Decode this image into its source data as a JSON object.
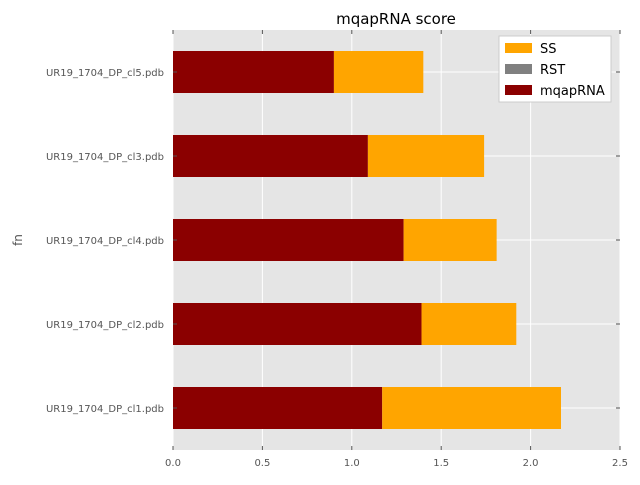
{
  "chart_data": {
    "type": "bar",
    "orientation": "horizontal",
    "stacked": true,
    "title": "mqapRNA score",
    "xlabel": "",
    "ylabel": "fn",
    "xlim": [
      0,
      2.5
    ],
    "xticks": [
      "0.0",
      "0.5",
      "1.0",
      "1.5",
      "2.0",
      "2.5"
    ],
    "grid": true,
    "legend_position": "top-right",
    "categories": [
      "UR19_1704_DP_cl1.pdb",
      "UR19_1704_DP_cl2.pdb",
      "UR19_1704_DP_cl4.pdb",
      "UR19_1704_DP_cl3.pdb",
      "UR19_1704_DP_cl5.pdb"
    ],
    "series": [
      {
        "name": "mqapRNA",
        "color": "#8b0000",
        "values": [
          1.17,
          1.39,
          1.29,
          1.09,
          0.9
        ]
      },
      {
        "name": "RST",
        "color": "#808080",
        "values": [
          0,
          0,
          0,
          0,
          0
        ]
      },
      {
        "name": "SS",
        "color": "#ffa500",
        "values": [
          1.0,
          0.53,
          0.52,
          0.65,
          0.5
        ]
      }
    ],
    "legend_order": [
      "SS",
      "RST",
      "mqapRNA"
    ]
  }
}
